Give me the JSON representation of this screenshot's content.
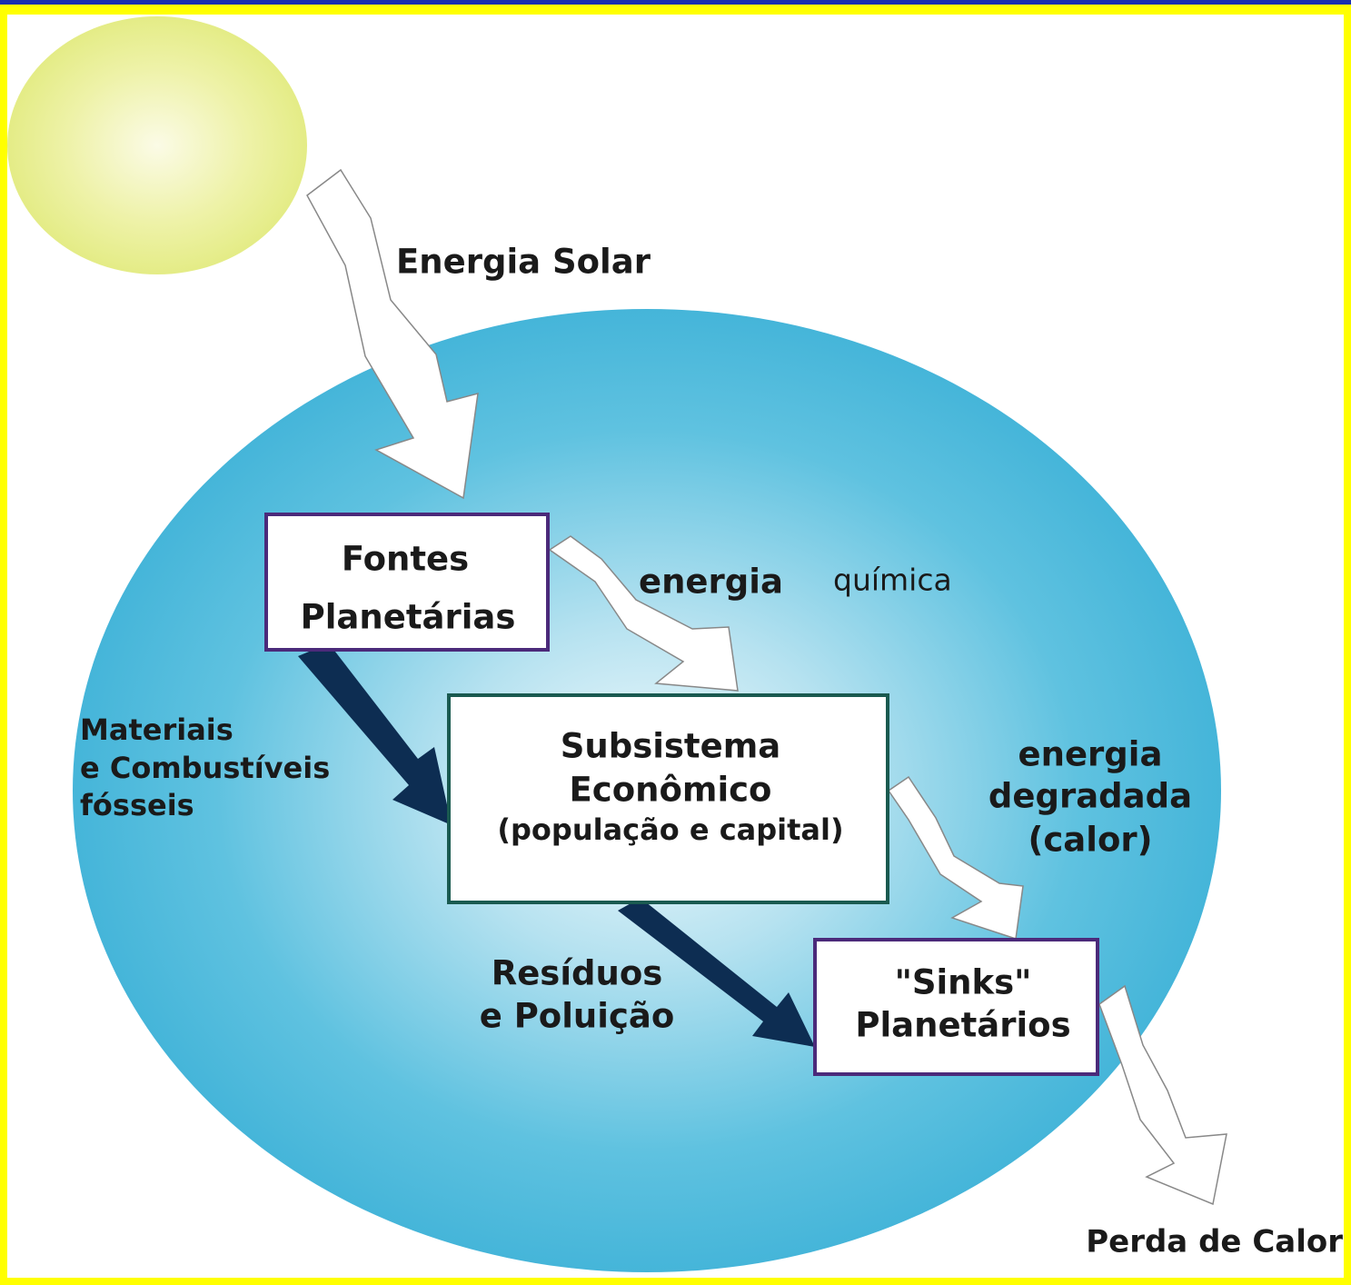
{
  "nodes": [
    {
      "lines": [
        "Fontes",
        "Planetárias"
      ]
    },
    {
      "lines": [
        "Subsistema",
        "Econômico",
        "(população e capital)"
      ]
    },
    {
      "lines": [
        "\"Sinks\"",
        "Planetários"
      ]
    }
  ],
  "flows": [
    {
      "lines": [
        "Energia Solar"
      ]
    },
    {
      "lines": [
        "energia",
        "química"
      ]
    },
    {
      "lines": [
        "Materiais",
        "e Combustíveis",
        "fósseis"
      ]
    },
    {
      "lines": [
        "energia",
        "degradada",
        "(calor)"
      ]
    },
    {
      "lines": [
        "Resíduos",
        "e Poluição"
      ]
    },
    {
      "lines": [
        "Perda de Calor"
      ]
    }
  ]
}
